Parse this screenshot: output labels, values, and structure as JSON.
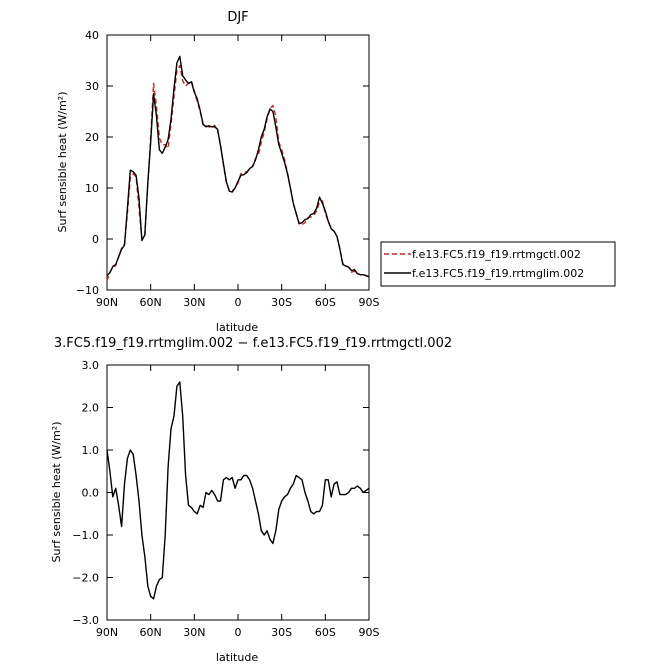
{
  "chart_data": [
    {
      "type": "line",
      "title": "DJF",
      "xlabel": "latitude",
      "ylabel": "Surf sensible heat (W/m²)",
      "ylim": [
        -10,
        40
      ],
      "yticks": [
        -10,
        0,
        10,
        20,
        30,
        40
      ],
      "yticklabels": [
        "−10",
        "0",
        "10",
        "20",
        "30",
        "40"
      ],
      "xlim": [
        90,
        -90
      ],
      "xticks": [
        90,
        60,
        30,
        0,
        -30,
        -60,
        -90
      ],
      "xticklabels": [
        "90N",
        "60N",
        "30N",
        "0",
        "30S",
        "60S",
        "90S"
      ],
      "legend_position": "right",
      "series": [
        {
          "name": "f.e13.FC5.f19_f19.rrtmgctl.002",
          "color": "#d62020",
          "dash": "dashed",
          "x": [
            90,
            88,
            86,
            84,
            82,
            80,
            78,
            76,
            74,
            72,
            70,
            68,
            66,
            64,
            62,
            60,
            58,
            56,
            54,
            52,
            50,
            48,
            46,
            44,
            42,
            40,
            38,
            36,
            34,
            32,
            30,
            28,
            26,
            24,
            22,
            20,
            18,
            16,
            14,
            12,
            10,
            8,
            6,
            4,
            2,
            0,
            -2,
            -4,
            -6,
            -8,
            -10,
            -12,
            -14,
            -16,
            -18,
            -20,
            -22,
            -24,
            -26,
            -28,
            -30,
            -32,
            -34,
            -36,
            -38,
            -40,
            -42,
            -44,
            -46,
            -48,
            -50,
            -52,
            -54,
            -56,
            -58,
            -60,
            -62,
            -64,
            -66,
            -68,
            -70,
            -72,
            -74,
            -76,
            -78,
            -80,
            -82,
            -84,
            -86,
            -88,
            -90
          ],
          "values": [
            -8.2,
            -6.5,
            -5.6,
            -5.2,
            -3.5,
            -1.8,
            -1.0,
            5.0,
            12.0,
            12.8,
            12.2,
            6.0,
            0.0,
            0.5,
            10.5,
            20.0,
            30.5,
            26.0,
            19.8,
            18.5,
            18.5,
            17.8,
            22.5,
            28.0,
            33.0,
            34.0,
            31.0,
            30.0,
            30.5,
            31.0,
            29.0,
            27.0,
            25.0,
            22.3,
            22.2,
            22.0,
            21.8,
            22.3,
            21.2,
            18.5,
            14.5,
            11.0,
            9.6,
            9.4,
            10.0,
            11.0,
            12.8,
            13.0,
            13.2,
            13.6,
            14.3,
            15.8,
            16.5,
            19.0,
            21.0,
            23.5,
            25.5,
            26.2,
            24.0,
            19.0,
            17.5,
            15.5,
            13.0,
            10.0,
            7.0,
            5.0,
            3.0,
            2.8,
            3.2,
            4.2,
            4.3,
            4.6,
            5.5,
            7.2,
            7.5,
            5.0,
            3.5,
            2.0,
            1.5,
            0.5,
            -2.0,
            -4.8,
            -5.2,
            -5.5,
            -6.5,
            -6.3,
            -6.8,
            -7.0,
            -7.0,
            -7.2,
            -7.4
          ]
        },
        {
          "name": "f.e13.FC5.f19_f19.rrtmglim.002",
          "color": "#000000",
          "dash": "solid",
          "x": [
            90,
            88,
            86,
            84,
            82,
            80,
            78,
            76,
            74,
            72,
            70,
            68,
            66,
            64,
            62,
            60,
            58,
            56,
            54,
            52,
            50,
            48,
            46,
            44,
            42,
            40,
            38,
            36,
            34,
            32,
            30,
            28,
            26,
            24,
            22,
            20,
            18,
            16,
            14,
            12,
            10,
            8,
            6,
            4,
            2,
            0,
            -2,
            -4,
            -6,
            -8,
            -10,
            -12,
            -14,
            -16,
            -18,
            -20,
            -22,
            -24,
            -26,
            -28,
            -30,
            -32,
            -34,
            -36,
            -38,
            -40,
            -42,
            -44,
            -46,
            -48,
            -50,
            -52,
            -54,
            -56,
            -58,
            -60,
            -62,
            -64,
            -66,
            -68,
            -70,
            -72,
            -74,
            -76,
            -78,
            -80,
            -82,
            -84,
            -86,
            -88,
            -90
          ],
          "values": [
            -7.2,
            -6.6,
            -5.4,
            -5.0,
            -3.5,
            -2.0,
            -1.2,
            6.0,
            13.5,
            13.2,
            12.5,
            8.0,
            -0.3,
            0.8,
            11.0,
            19.0,
            28.5,
            24.0,
            17.5,
            16.8,
            18.0,
            19.5,
            23.5,
            29.5,
            34.5,
            35.8,
            32.0,
            31.2,
            30.5,
            30.8,
            28.8,
            27.5,
            25.2,
            22.5,
            22.0,
            22.2,
            22.0,
            22.0,
            21.5,
            18.3,
            14.8,
            11.2,
            9.4,
            9.2,
            10.0,
            11.3,
            12.5,
            12.6,
            13.0,
            13.8,
            14.2,
            15.5,
            17.5,
            20.0,
            21.5,
            24.0,
            25.5,
            25.0,
            22.0,
            18.5,
            16.8,
            15.0,
            12.8,
            10.0,
            7.0,
            5.0,
            3.0,
            3.2,
            3.8,
            4.0,
            4.8,
            5.0,
            6.0,
            8.2,
            7.0,
            5.5,
            3.5,
            2.0,
            1.5,
            0.5,
            -2.0,
            -5.0,
            -5.3,
            -5.5,
            -6.2,
            -6.0,
            -6.8,
            -7.0,
            -7.0,
            -7.2,
            -7.4
          ]
        }
      ]
    },
    {
      "type": "line",
      "title": "3.FC5.f19_f19.rrtmglim.002 − f.e13.FC5.f19_f19.rrtmgctl.002",
      "xlabel": "latitude",
      "ylabel": "Surf sensible heat (W/m²)",
      "ylim": [
        -3.0,
        3.0
      ],
      "yticks": [
        -3.0,
        -2.0,
        -1.0,
        0.0,
        1.0,
        2.0,
        3.0
      ],
      "yticklabels": [
        "−3.0",
        "−2.0",
        "−1.0",
        "0.0",
        "1.0",
        "2.0",
        "3.0"
      ],
      "xlim": [
        90,
        -90
      ],
      "xticks": [
        90,
        60,
        30,
        0,
        -30,
        -60,
        -90
      ],
      "xticklabels": [
        "90N",
        "60N",
        "30N",
        "0",
        "30S",
        "60S",
        "90S"
      ],
      "series": [
        {
          "color": "#000000",
          "x": [
            90,
            88,
            86,
            84,
            82,
            80,
            78,
            76,
            74,
            72,
            70,
            68,
            66,
            64,
            62,
            60,
            58,
            56,
            54,
            52,
            50,
            48,
            46,
            44,
            42,
            40,
            38,
            36,
            34,
            32,
            30,
            28,
            26,
            24,
            22,
            20,
            18,
            16,
            14,
            12,
            10,
            8,
            6,
            4,
            2,
            0,
            -2,
            -4,
            -6,
            -8,
            -10,
            -12,
            -14,
            -16,
            -18,
            -20,
            -22,
            -24,
            -26,
            -28,
            -30,
            -32,
            -34,
            -36,
            -38,
            -40,
            -42,
            -44,
            -46,
            -48,
            -50,
            -52,
            -54,
            -56,
            -58,
            -60,
            -62,
            -64,
            -66,
            -68,
            -70,
            -72,
            -74,
            -76,
            -78,
            -80,
            -82,
            -84,
            -86,
            -88,
            -90
          ],
          "values": [
            1.0,
            0.5,
            -0.1,
            0.1,
            -0.3,
            -0.8,
            0.2,
            0.8,
            1.0,
            0.9,
            0.4,
            -0.2,
            -1.0,
            -1.5,
            -2.2,
            -2.45,
            -2.5,
            -2.2,
            -2.05,
            -2.0,
            -1.0,
            0.6,
            1.5,
            1.8,
            2.5,
            2.6,
            1.8,
            0.4,
            -0.3,
            -0.35,
            -0.45,
            -0.5,
            -0.3,
            -0.35,
            0.0,
            -0.05,
            0.05,
            -0.05,
            -0.2,
            -0.2,
            0.3,
            0.35,
            0.3,
            0.35,
            0.1,
            0.3,
            0.3,
            0.4,
            0.4,
            0.3,
            0.1,
            -0.2,
            -0.5,
            -0.9,
            -1.0,
            -0.9,
            -1.1,
            -1.2,
            -0.9,
            -0.4,
            -0.2,
            -0.1,
            -0.05,
            0.1,
            0.2,
            0.4,
            0.35,
            0.3,
            0.0,
            -0.2,
            -0.45,
            -0.5,
            -0.45,
            -0.45,
            -0.3,
            0.3,
            0.3,
            -0.1,
            0.2,
            0.25,
            -0.05,
            -0.05,
            -0.05,
            0.0,
            0.1,
            0.1,
            0.15,
            0.1,
            0.0,
            0.05,
            0.1
          ]
        }
      ]
    }
  ]
}
